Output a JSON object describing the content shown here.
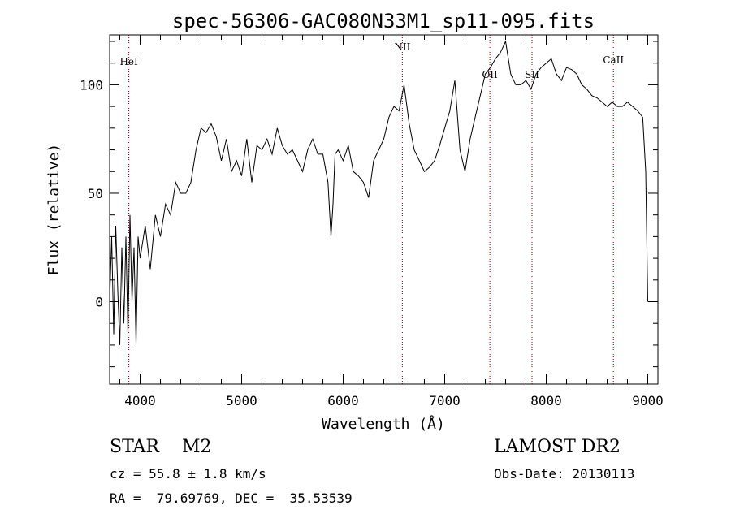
{
  "chart_data": {
    "type": "line",
    "title": "spec-56306-GAC080N33M1_sp11-095.fits",
    "xlabel": "Wavelength (Å)",
    "ylabel": "Flux (relative)",
    "xlim": [
      3700,
      9100
    ],
    "ylim": [
      -38,
      123
    ],
    "xticks": [
      4000,
      5000,
      6000,
      7000,
      8000,
      9000
    ],
    "yticks": [
      0,
      50,
      100
    ],
    "grid": false,
    "series": [
      {
        "x": [
          3700,
          3720,
          3740,
          3760,
          3780,
          3800,
          3820,
          3840,
          3860,
          3880,
          3900,
          3920,
          3940,
          3960,
          3980,
          4000,
          4050,
          4100,
          4150,
          4200,
          4250,
          4300,
          4350,
          4400,
          4450,
          4500,
          4550,
          4600,
          4650,
          4700,
          4750,
          4800,
          4850,
          4900,
          4950,
          5000,
          5050,
          5100,
          5150,
          5200,
          5250,
          5300,
          5350,
          5400,
          5450,
          5500,
          5550,
          5600,
          5650,
          5700,
          5750,
          5800,
          5850,
          5880,
          5900,
          5920,
          5950,
          6000,
          6050,
          6100,
          6150,
          6200,
          6250,
          6300,
          6350,
          6400,
          6450,
          6500,
          6550,
          6600,
          6650,
          6700,
          6750,
          6800,
          6850,
          6900,
          6950,
          7000,
          7050,
          7100,
          7150,
          7200,
          7250,
          7300,
          7350,
          7400,
          7450,
          7500,
          7550,
          7600,
          7650,
          7700,
          7750,
          7800,
          7850,
          7900,
          7950,
          8000,
          8050,
          8100,
          8150,
          8200,
          8250,
          8300,
          8350,
          8400,
          8450,
          8500,
          8550,
          8600,
          8650,
          8700,
          8750,
          8800,
          8850,
          8900,
          8950,
          8980,
          9000
        ],
        "y": [
          0,
          30,
          -15,
          35,
          5,
          -20,
          25,
          -10,
          30,
          -15,
          40,
          0,
          25,
          -20,
          30,
          20,
          35,
          15,
          40,
          30,
          45,
          40,
          55,
          50,
          50,
          55,
          70,
          80,
          78,
          82,
          76,
          65,
          75,
          60,
          65,
          58,
          75,
          55,
          72,
          70,
          75,
          68,
          80,
          72,
          68,
          70,
          65,
          60,
          70,
          75,
          68,
          68,
          55,
          30,
          45,
          68,
          70,
          65,
          72,
          60,
          58,
          55,
          48,
          65,
          70,
          75,
          85,
          90,
          88,
          100,
          82,
          70,
          65,
          60,
          62,
          65,
          72,
          80,
          88,
          102,
          70,
          60,
          75,
          85,
          95,
          105,
          108,
          112,
          115,
          120,
          105,
          100,
          100,
          102,
          98,
          105,
          108,
          110,
          112,
          105,
          102,
          108,
          107,
          105,
          100,
          98,
          95,
          94,
          92,
          90,
          92,
          90,
          90,
          92,
          90,
          88,
          85,
          60,
          0
        ]
      }
    ],
    "reference_lines": [
      {
        "label": "HeI",
        "x": 3889
      },
      {
        "label": "NII",
        "x": 6583
      },
      {
        "label": "OII",
        "x": 7445
      },
      {
        "label": "SII",
        "x": 7860
      },
      {
        "label": "CaII",
        "x": 8662
      }
    ]
  },
  "info": {
    "class_line": "STAR    M2",
    "survey": "LAMOST DR2",
    "cz": "cz = 55.8 ± 1.8 km/s",
    "obs_date": "Obs-Date: 20130113",
    "coords": "RA =  79.69769, DEC =  35.53539"
  }
}
